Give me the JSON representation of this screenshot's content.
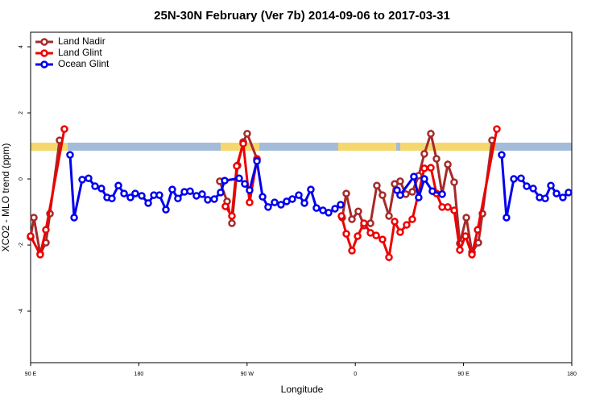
{
  "chart_data": {
    "type": "line",
    "title": "25N-30N February (Ver 7b)   2014-09-06 to 2017-03-31",
    "x_label": "Longitude",
    "y_label": "XCO2 - MLO trend (ppm)",
    "xlim": [
      90,
      540
    ],
    "ylim": [
      -5.56,
      4.44
    ],
    "xticks": [
      {
        "value": 90,
        "label": "90 E"
      },
      180,
      {
        "value": 270,
        "label": "90 W"
      },
      {
        "value": 360,
        "label": "0"
      },
      {
        "value": 450,
        "label": "90 E"
      },
      {
        "value": 540,
        "label": "180"
      }
    ],
    "yticks": [
      -4,
      -2,
      0,
      2,
      4
    ],
    "legend": "top-left",
    "series": [
      {
        "name": "Land Nadir",
        "color": "#a52a2a",
        "x": [
          90,
          92.7,
          98,
          102.7,
          106.1,
          114.1,
          180,
          247.3,
          253.4,
          257.4,
          262.1,
          266.8,
          270.1,
          278.2,
          310,
          349.1,
          352.5,
          357.2,
          362.5,
          367.2,
          372.6,
          377.9,
          382.6,
          388,
          392.7,
          397.3,
          402,
          407.4,
          412.7,
          417.4,
          422.8,
          427.5,
          432.2,
          436.9,
          442.2,
          446.9,
          452.3,
          457,
          462.3,
          465.7,
          473.7
        ],
        "values": [
          -1.76,
          -1.17,
          -2.27,
          -1.93,
          -1.05,
          1.17,
          null,
          -0.07,
          -0.68,
          -1.34,
          0.41,
          1.12,
          1.37,
          0.61,
          null,
          -1.17,
          -0.44,
          -1.22,
          -0.98,
          -1.41,
          -1.34,
          -0.2,
          -0.49,
          -1.12,
          -0.15,
          -0.07,
          -0.46,
          -0.39,
          0.1,
          0.76,
          1.37,
          0.61,
          -0.46,
          0.44,
          -0.1,
          -1.95,
          -1.17,
          -2.22,
          -1.93,
          -1.05,
          1.17
        ]
      },
      {
        "name": "Land Glint",
        "color": "#ee0000",
        "x": [
          90,
          98,
          102.7,
          118.1,
          180,
          252,
          257.4,
          261.4,
          266.8,
          272.1,
          278.2,
          310,
          348.5,
          352.5,
          357.2,
          361.9,
          367.2,
          372.6,
          377.3,
          382.6,
          388,
          392.7,
          397.3,
          402.7,
          407.4,
          417.4,
          422.8,
          427.5,
          432.2,
          436.9,
          442.2,
          446.9,
          451.6,
          457,
          461.7,
          477.7
        ],
        "values": [
          -1.73,
          -2.29,
          -1.54,
          1.51,
          null,
          -0.83,
          -1.12,
          0.39,
          1.07,
          -0.71,
          0.59,
          null,
          -1.12,
          -1.66,
          -2.17,
          -1.73,
          -1.34,
          -1.63,
          -1.71,
          -1.83,
          -2.37,
          -1.29,
          -1.61,
          -1.39,
          -1.22,
          0.32,
          0.34,
          -0.44,
          -0.85,
          -0.85,
          -0.95,
          -2.15,
          -1.73,
          -2.29,
          -1.54,
          1.51
        ]
      },
      {
        "name": "Ocean Glint",
        "color": "#0000ee",
        "x": [
          122.8,
          126.2,
          132.9,
          138.2,
          143.6,
          148.9,
          153.6,
          157.6,
          163,
          167.7,
          173,
          177,
          182.4,
          187.8,
          192.5,
          197.1,
          202.5,
          207.8,
          212.5,
          217.9,
          222.6,
          227.9,
          232.6,
          237.3,
          242.7,
          248,
          251.4,
          263.4,
          268.1,
          272.1,
          278.2,
          282.9,
          287.5,
          292.9,
          298.2,
          302.9,
          307.6,
          313,
          317.7,
          323,
          327.7,
          333.1,
          337.8,
          343.1,
          347.8,
          370,
          394.7,
          397.3,
          408.7,
          412.7,
          417.4,
          424.1,
          432.2,
          460,
          481.7,
          485.7,
          491.8,
          497.8,
          502.5,
          507.9,
          513.2,
          517.9,
          522.6,
          527.3,
          532.6,
          537.3
        ],
        "values": [
          0.73,
          -1.17,
          -0.02,
          0.02,
          -0.22,
          -0.29,
          -0.56,
          -0.59,
          -0.2,
          -0.44,
          -0.56,
          -0.44,
          -0.51,
          -0.73,
          -0.49,
          -0.49,
          -0.93,
          -0.32,
          -0.59,
          -0.39,
          -0.37,
          -0.51,
          -0.46,
          -0.63,
          -0.61,
          -0.41,
          -0.05,
          0.02,
          -0.15,
          -0.34,
          0.54,
          -0.54,
          -0.85,
          -0.71,
          -0.78,
          -0.68,
          -0.61,
          -0.49,
          -0.73,
          -0.32,
          -0.88,
          -0.95,
          -1.02,
          -0.9,
          -0.78,
          null,
          -0.34,
          -0.49,
          0.07,
          -0.56,
          0,
          -0.37,
          -0.46,
          null,
          0.73,
          -1.17,
          0,
          0.02,
          -0.22,
          -0.29,
          -0.56,
          -0.59,
          -0.2,
          -0.44,
          -0.56,
          -0.41
        ]
      }
    ]
  }
}
